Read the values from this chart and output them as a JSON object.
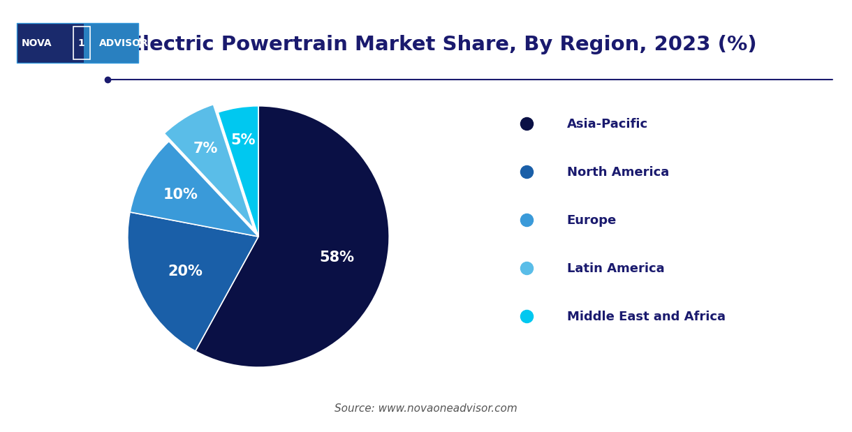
{
  "title": "Electric Powertrain Market Share, By Region, 2023 (%)",
  "title_color": "#1a1a6e",
  "title_fontsize": 21,
  "background_color": "#ffffff",
  "labels": [
    "Asia-Pacific",
    "North America",
    "Europe",
    "Latin America",
    "Middle East and Africa"
  ],
  "values": [
    58,
    20,
    10,
    7,
    5
  ],
  "colors": [
    "#0a1045",
    "#1a5fa8",
    "#3a9ad9",
    "#5abde8",
    "#00c8f0"
  ],
  "explode": [
    0,
    0,
    0,
    0.07,
    0
  ],
  "pct_labels": [
    "58%",
    "20%",
    "10%",
    "7%",
    "5%"
  ],
  "pct_colors": [
    "white",
    "white",
    "white",
    "white",
    "white"
  ],
  "pct_fontsize": 15,
  "legend_fontsize": 13,
  "source_text": "Source: www.novaoneadvisor.com",
  "source_fontsize": 11,
  "source_color": "#555555",
  "separator_color": "#1a1a6e",
  "logo_left_color": "#1a2a6c",
  "logo_right_color": "#2980c0",
  "logo_border_color": "#3399dd"
}
